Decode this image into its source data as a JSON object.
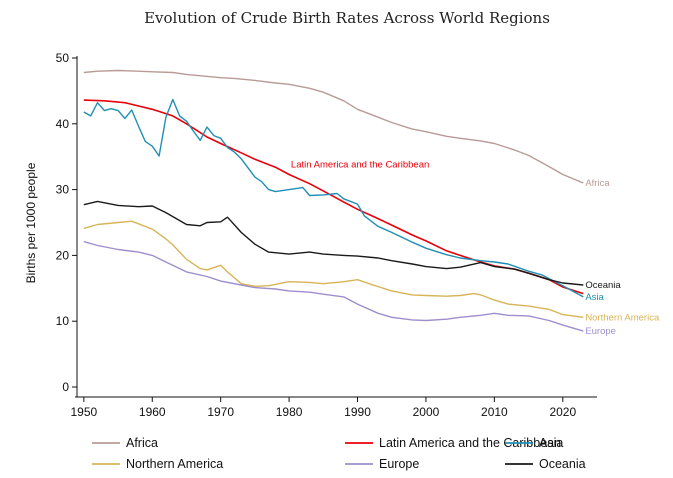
{
  "chart_data": {
    "type": "line",
    "title": "Evolution of Crude Birth Rates Across World Regions",
    "xlabel": "",
    "ylabel": "Births per 1000 people",
    "xlim": [
      1949,
      2025
    ],
    "ylim": [
      0,
      50
    ],
    "xticks": [
      1950,
      1960,
      1970,
      1980,
      1990,
      2000,
      2010,
      2020
    ],
    "yticks": [
      0,
      10,
      20,
      30,
      40,
      50
    ],
    "annotation": {
      "text": "Latin America and the Caribbean",
      "x": 1980,
      "y": 33.5,
      "color": "#e8000b"
    },
    "series": [
      {
        "name": "Africa",
        "end_label": "Africa",
        "color": "#b89b96",
        "x": [
          1950,
          1952,
          1955,
          1958,
          1960,
          1963,
          1965,
          1970,
          1972,
          1975,
          1978,
          1980,
          1983,
          1985,
          1988,
          1990,
          1993,
          1995,
          1998,
          2000,
          2003,
          2005,
          2008,
          2010,
          2013,
          2015,
          2018,
          2020,
          2023
        ],
        "y": [
          47.8,
          48.0,
          48.1,
          48.0,
          47.9,
          47.8,
          47.5,
          47.0,
          46.9,
          46.6,
          46.2,
          46.0,
          45.4,
          44.8,
          43.5,
          42.2,
          41.0,
          40.2,
          39.2,
          38.8,
          38.1,
          37.8,
          37.4,
          37.0,
          36.0,
          35.2,
          33.5,
          32.3,
          31.0
        ]
      },
      {
        "name": "Latin America and the Caribbean",
        "end_label": "",
        "color": "#e8000b",
        "x": [
          1950,
          1953,
          1956,
          1958,
          1960,
          1963,
          1965,
          1968,
          1970,
          1973,
          1975,
          1978,
          1980,
          1983,
          1985,
          1988,
          1990,
          1993,
          1995,
          1998,
          2000,
          2003,
          2005,
          2008,
          2010,
          2013,
          2015,
          2018,
          2020,
          2023
        ],
        "y": [
          43.6,
          43.5,
          43.2,
          42.7,
          42.2,
          41.2,
          40.0,
          38.0,
          37.0,
          35.6,
          34.6,
          33.4,
          32.3,
          30.9,
          29.8,
          28.1,
          27.0,
          25.6,
          24.6,
          23.1,
          22.2,
          20.7,
          20.0,
          19.0,
          18.4,
          17.9,
          17.3,
          16.3,
          15.2,
          14.2
        ]
      },
      {
        "name": "Asia",
        "end_label": "Asia",
        "color": "#1f8fb4",
        "x": [
          1950,
          1951,
          1952,
          1953,
          1954,
          1955,
          1956,
          1957,
          1958,
          1959,
          1960,
          1961,
          1962,
          1963,
          1964,
          1965,
          1966,
          1967,
          1968,
          1969,
          1970,
          1971,
          1972,
          1973,
          1974,
          1975,
          1976,
          1977,
          1978,
          1980,
          1982,
          1983,
          1985,
          1987,
          1988,
          1990,
          1991,
          1993,
          1995,
          1998,
          2000,
          2003,
          2005,
          2008,
          2010,
          2012,
          2015,
          2017,
          2020,
          2023
        ],
        "y": [
          41.8,
          41.2,
          43.2,
          42.0,
          42.3,
          42.0,
          40.8,
          42.1,
          39.6,
          37.3,
          36.6,
          35.1,
          41.0,
          43.7,
          41.2,
          40.4,
          38.9,
          37.5,
          39.5,
          38.2,
          37.8,
          36.4,
          35.7,
          34.7,
          33.3,
          31.9,
          31.2,
          30.0,
          29.7,
          30.0,
          30.3,
          29.1,
          29.2,
          29.4,
          28.6,
          27.8,
          26.0,
          24.4,
          23.5,
          22.0,
          21.1,
          20.1,
          19.6,
          19.2,
          19.0,
          18.7,
          17.6,
          17.0,
          15.4,
          13.7
        ]
      },
      {
        "name": "Northern America",
        "end_label": "Northern America",
        "color": "#d6b456",
        "x": [
          1950,
          1952,
          1955,
          1957,
          1960,
          1962,
          1963,
          1965,
          1967,
          1968,
          1970,
          1971,
          1973,
          1975,
          1977,
          1980,
          1983,
          1985,
          1988,
          1990,
          1992,
          1995,
          1998,
          2000,
          2003,
          2005,
          2007,
          2008,
          2010,
          2012,
          2015,
          2018,
          2020,
          2023
        ],
        "y": [
          24.1,
          24.7,
          25.0,
          25.2,
          24.0,
          22.5,
          21.6,
          19.4,
          18.0,
          17.8,
          18.5,
          17.5,
          15.7,
          15.3,
          15.4,
          16.0,
          15.9,
          15.7,
          16.0,
          16.3,
          15.6,
          14.6,
          14.0,
          13.9,
          13.8,
          13.9,
          14.2,
          14.0,
          13.2,
          12.6,
          12.3,
          11.8,
          11.0,
          10.6
        ]
      },
      {
        "name": "Europe",
        "end_label": "Europe",
        "color": "#9e8fcc",
        "x": [
          1950,
          1952,
          1955,
          1958,
          1960,
          1962,
          1965,
          1968,
          1970,
          1973,
          1975,
          1978,
          1980,
          1983,
          1985,
          1988,
          1990,
          1993,
          1995,
          1998,
          2000,
          2003,
          2005,
          2008,
          2010,
          2012,
          2015,
          2018,
          2020,
          2023
        ],
        "y": [
          22.1,
          21.5,
          20.9,
          20.5,
          20.0,
          19.0,
          17.5,
          16.8,
          16.1,
          15.5,
          15.1,
          14.9,
          14.6,
          14.4,
          14.1,
          13.7,
          12.6,
          11.2,
          10.6,
          10.2,
          10.1,
          10.3,
          10.6,
          10.9,
          11.2,
          10.9,
          10.8,
          10.1,
          9.4,
          8.5
        ]
      },
      {
        "name": "Oceania",
        "end_label": "Oceania",
        "color": "#1a1a1a",
        "x": [
          1950,
          1952,
          1955,
          1958,
          1960,
          1962,
          1965,
          1967,
          1968,
          1970,
          1971,
          1973,
          1975,
          1977,
          1980,
          1983,
          1985,
          1988,
          1990,
          1993,
          1995,
          1998,
          2000,
          2003,
          2005,
          2008,
          2010,
          2013,
          2015,
          2018,
          2020,
          2023
        ],
        "y": [
          27.7,
          28.2,
          27.6,
          27.4,
          27.5,
          26.5,
          24.7,
          24.5,
          25.0,
          25.1,
          25.8,
          23.5,
          21.7,
          20.5,
          20.2,
          20.5,
          20.2,
          20.0,
          19.9,
          19.6,
          19.2,
          18.7,
          18.3,
          18.0,
          18.2,
          18.9,
          18.3,
          17.9,
          17.3,
          16.3,
          15.8,
          15.5
        ]
      }
    ]
  }
}
